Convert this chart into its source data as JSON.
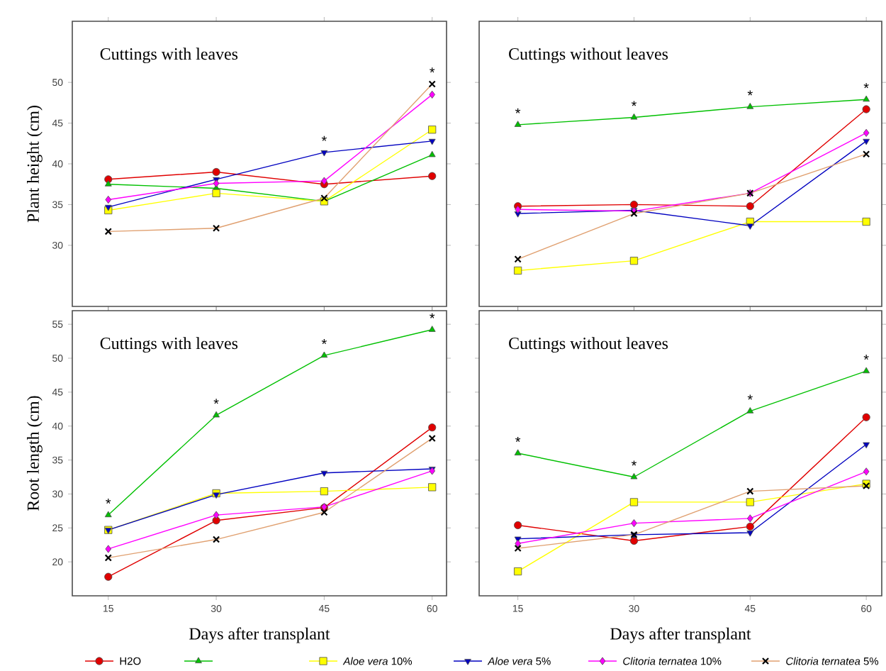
{
  "chart_data": [
    {
      "type": "line",
      "title": "Cuttings with leaves",
      "ylabel": "Plant height (cm)",
      "x": [
        15,
        30,
        45,
        60
      ],
      "xlim": [
        10,
        62
      ],
      "xticks": [
        15,
        30,
        45,
        60
      ],
      "ylim": [
        22.5,
        57.5
      ],
      "yticks": [
        30,
        35,
        40,
        45,
        50
      ],
      "tick_labels": "y",
      "legend": "bottom",
      "series": [
        {
          "name": "H2O",
          "color": "#e00000",
          "marker": "circle",
          "values": [
            38.1,
            39.0,
            37.5,
            38.5
          ]
        },
        {
          "color": "#00c000",
          "marker": "triangle",
          "values": [
            37.5,
            37.0,
            35.4,
            41.1
          ]
        },
        {
          "name": "*Aloe vera* 10%",
          "color": "#ffff00",
          "marker": "square",
          "values": [
            34.3,
            36.4,
            35.4,
            44.2
          ]
        },
        {
          "name": "*Aloe vera* 5%",
          "color": "#0000c0",
          "marker": "triangle-down",
          "values": [
            34.7,
            38.1,
            41.4,
            42.8
          ]
        },
        {
          "name": "*Clitoria ternatea* 10%",
          "color": "#ff00ff",
          "marker": "diamond",
          "values": [
            35.6,
            37.6,
            37.9,
            48.5
          ]
        },
        {
          "name": "*Clitoria ternatea* 5%",
          "color": "#e0a070",
          "marker": "cross",
          "values": [
            31.7,
            32.1,
            35.8,
            49.8
          ]
        }
      ],
      "annotations": [
        {
          "text": "*",
          "x": 45,
          "y": 41.4
        },
        {
          "text": "*",
          "x": 60,
          "y": 49.8
        }
      ]
    },
    {
      "type": "line",
      "title": "Cuttings without leaves",
      "x": [
        15,
        30,
        45,
        60
      ],
      "xlim": [
        10,
        62
      ],
      "xticks": [
        15,
        30,
        45,
        60
      ],
      "ylim": [
        22.5,
        57.5
      ],
      "yticks": [
        30,
        35,
        40,
        45,
        50
      ],
      "tick_labels": false,
      "series": [
        {
          "color": "#e00000",
          "marker": "circle",
          "values": [
            34.8,
            35.0,
            34.8,
            46.7
          ]
        },
        {
          "color": "#00c000",
          "marker": "triangle",
          "values": [
            44.8,
            45.7,
            47.0,
            47.9
          ]
        },
        {
          "color": "#ffff00",
          "marker": "square",
          "values": [
            26.9,
            28.1,
            32.9,
            32.9
          ]
        },
        {
          "color": "#0000c0",
          "marker": "triangle-down",
          "values": [
            33.9,
            34.3,
            32.4,
            42.8
          ]
        },
        {
          "color": "#ff00ff",
          "marker": "diamond",
          "values": [
            34.4,
            34.2,
            36.4,
            43.8
          ]
        },
        {
          "color": "#e0a070",
          "marker": "cross",
          "values": [
            28.3,
            33.9,
            36.4,
            41.2
          ]
        }
      ],
      "annotations": [
        {
          "text": "*",
          "x": 15,
          "y": 44.8
        },
        {
          "text": "*",
          "x": 30,
          "y": 45.7
        },
        {
          "text": "*",
          "x": 45,
          "y": 47.0
        },
        {
          "text": "*",
          "x": 60,
          "y": 47.9
        }
      ]
    },
    {
      "type": "line",
      "title": "Cuttings with leaves",
      "ylabel": "Root length (cm)",
      "xlabel": "Days after transplant",
      "x": [
        15,
        30,
        45,
        60
      ],
      "xlim": [
        10,
        62
      ],
      "xticks": [
        15,
        30,
        45,
        60
      ],
      "ylim": [
        15,
        57
      ],
      "yticks": [
        20,
        25,
        30,
        35,
        40,
        45,
        50,
        55
      ],
      "series": [
        {
          "color": "#e00000",
          "marker": "circle",
          "values": [
            17.8,
            26.1,
            28.0,
            39.8
          ]
        },
        {
          "color": "#00c000",
          "marker": "triangle",
          "values": [
            26.9,
            41.6,
            50.4,
            54.2
          ]
        },
        {
          "color": "#ffff00",
          "marker": "square",
          "values": [
            24.7,
            30.1,
            30.4,
            31.0
          ]
        },
        {
          "color": "#0000c0",
          "marker": "triangle-down",
          "values": [
            24.7,
            29.9,
            33.1,
            33.7
          ]
        },
        {
          "color": "#ff00ff",
          "marker": "diamond",
          "values": [
            21.9,
            26.9,
            28.1,
            33.4
          ]
        },
        {
          "color": "#e0a070",
          "marker": "cross",
          "values": [
            20.6,
            23.3,
            27.3,
            38.2
          ]
        }
      ],
      "annotations": [
        {
          "text": "*",
          "x": 15,
          "y": 26.9
        },
        {
          "text": "*",
          "x": 30,
          "y": 41.6
        },
        {
          "text": "*",
          "x": 45,
          "y": 50.4
        },
        {
          "text": "*",
          "x": 60,
          "y": 54.2
        }
      ]
    },
    {
      "type": "line",
      "title": "Cuttings without leaves",
      "xlabel": "Days after transplant",
      "x": [
        15,
        30,
        45,
        60
      ],
      "xlim": [
        10,
        62
      ],
      "xticks": [
        15,
        30,
        45,
        60
      ],
      "ylim": [
        15,
        57
      ],
      "yticks": [
        20,
        25,
        30,
        35,
        40,
        45,
        50,
        55
      ],
      "tick_labels": "x",
      "series": [
        {
          "color": "#e00000",
          "marker": "circle",
          "values": [
            25.4,
            23.1,
            25.2,
            41.3
          ]
        },
        {
          "color": "#00c000",
          "marker": "triangle",
          "values": [
            36.0,
            32.5,
            42.2,
            48.1
          ]
        },
        {
          "color": "#ffff00",
          "marker": "square",
          "values": [
            18.6,
            28.8,
            28.8,
            31.5
          ]
        },
        {
          "color": "#0000c0",
          "marker": "triangle-down",
          "values": [
            23.4,
            24.0,
            24.3,
            37.3
          ]
        },
        {
          "color": "#ff00ff",
          "marker": "diamond",
          "values": [
            22.7,
            25.7,
            26.4,
            33.3
          ]
        },
        {
          "color": "#e0a070",
          "marker": "cross",
          "values": [
            22.0,
            24.0,
            30.4,
            31.2
          ]
        }
      ],
      "annotations": [
        {
          "text": "*",
          "x": 15,
          "y": 36.0
        },
        {
          "text": "*",
          "x": 30,
          "y": 32.5
        },
        {
          "text": "*",
          "x": 45,
          "y": 42.2
        },
        {
          "text": "*",
          "x": 60,
          "y": 48.1
        }
      ]
    }
  ]
}
